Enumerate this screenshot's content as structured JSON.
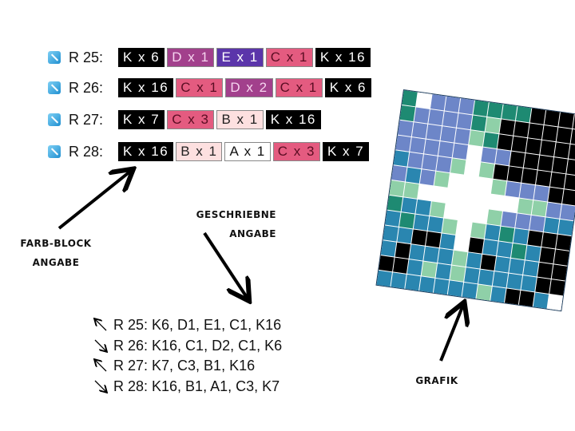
{
  "colors": {
    "K": "#000000",
    "D": "#a2408c",
    "E": "#5b35aa",
    "C": "#e45b80",
    "B": "#fde0e0",
    "A": "#ffffff"
  },
  "block_rows": [
    {
      "label": "R 25:",
      "icon": "arrow-diagonal-icon",
      "blocks": [
        {
          "c": "K",
          "t": "K x 6"
        },
        {
          "c": "D",
          "t": "D x 1"
        },
        {
          "c": "E",
          "t": "E x 1"
        },
        {
          "c": "C",
          "t": "C x 1"
        },
        {
          "c": "K",
          "t": "K x 16"
        }
      ]
    },
    {
      "label": "R 26:",
      "icon": "arrow-diagonal-icon",
      "blocks": [
        {
          "c": "K",
          "t": "K x 16"
        },
        {
          "c": "C",
          "t": "C x 1"
        },
        {
          "c": "D",
          "t": "D x 2"
        },
        {
          "c": "C",
          "t": "C x 1"
        },
        {
          "c": "K",
          "t": "K x 6"
        }
      ]
    },
    {
      "label": "R 27:",
      "icon": "arrow-diagonal-icon",
      "blocks": [
        {
          "c": "K",
          "t": "K x 7"
        },
        {
          "c": "C",
          "t": "C x 3"
        },
        {
          "c": "B",
          "t": "B x 1"
        },
        {
          "c": "K",
          "t": "K x 16"
        }
      ]
    },
    {
      "label": "R 28:",
      "icon": "arrow-diagonal-icon",
      "blocks": [
        {
          "c": "K",
          "t": "K x 16"
        },
        {
          "c": "B",
          "t": "B x 1"
        },
        {
          "c": "A",
          "t": "A x 1"
        },
        {
          "c": "C",
          "t": "C x 3"
        },
        {
          "c": "K",
          "t": "K x 7"
        }
      ]
    }
  ],
  "labels": {
    "farb_block_1": "FARB-BLOCK",
    "farb_block_2": "ANGABE",
    "geschriebne_1": "GESCHRIEBNE",
    "geschriebne_2": "ANGABE",
    "grafik": "GRAFIK"
  },
  "text_rows": [
    {
      "dir": "up-left",
      "text": "R 25: K6, D1, E1, C1, K16"
    },
    {
      "dir": "down-right",
      "text": "R 26: K16, C1, D2, C1, K6"
    },
    {
      "dir": "up-left",
      "text": "R 27: K7, C3, B1, K16"
    },
    {
      "dir": "down-right",
      "text": "R 28: K16, B1, A1, C3, K7"
    }
  ],
  "grid_colors": {
    "G": "#1e8a72",
    "L": "#6d86c8",
    "T": "#2a86b0",
    "M": "#8fd0a8",
    "W": "#ffffff",
    "K": "#000000"
  },
  "grid": [
    "GWLLLGGGGKKKK",
    "GLLLLGMKKKKKK",
    "LLLLLMGKKKKKK",
    "LLLLLWLLKKKKK",
    "TLLLMWMKKKKKK",
    "LTLMWWWMLLLKK",
    "MMWWWWWWWMMLL",
    "GTTMWWWMLLLTT",
    "TGTTMWMTGTKKK",
    "TTKKTWKTTGTKK",
    "TKTTTMTKTTTKK",
    "KKTMTMTTTTTKK",
    "TTTTTTTMTKKTW"
  ]
}
